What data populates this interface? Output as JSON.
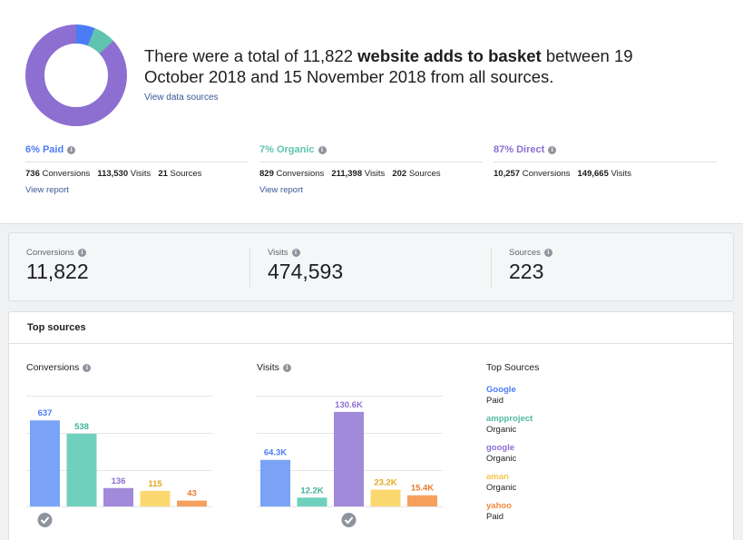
{
  "summary": {
    "headline_pre": "There were a total of 11,822 ",
    "headline_bold": "website adds to basket",
    "headline_post": " between 19 October 2018 and 15 November 2018 from all sources.",
    "view_sources": "View data sources",
    "donut": [
      {
        "label": "Paid",
        "percent": 6,
        "color": "#4a7cf6"
      },
      {
        "label": "Organic",
        "percent": 7,
        "color": "#5ec4b0"
      },
      {
        "label": "Direct",
        "percent": 87,
        "color": "#8c6fd1"
      }
    ]
  },
  "segments": [
    {
      "title": "6% Paid",
      "color": "#4a7cf6",
      "conv": "736",
      "conv_label": "Conversions",
      "visits": "113,530",
      "visits_label": "Visits",
      "sources": "21",
      "sources_label": "Sources",
      "link": "View report"
    },
    {
      "title": "7% Organic",
      "color": "#5ec4b0",
      "conv": "829",
      "conv_label": "Conversions",
      "visits": "211,398",
      "visits_label": "Visits",
      "sources": "202",
      "sources_label": "Sources",
      "link": "View report"
    },
    {
      "title": "87% Direct",
      "color": "#8c6fd1",
      "conv": "10,257",
      "conv_label": "Conversions",
      "visits": "149,665",
      "visits_label": "Visits"
    }
  ],
  "metrics": [
    {
      "label": "Conversions",
      "value": "11,822"
    },
    {
      "label": "Visits",
      "value": "474,593"
    },
    {
      "label": "Sources",
      "value": "223"
    }
  ],
  "card": {
    "title": "Top sources",
    "conversions_label": "Conversions",
    "visits_label": "Visits",
    "top_sources_label": "Top Sources"
  },
  "top_sources": [
    {
      "name": "Google",
      "type": "Paid",
      "color": "#4a7cf6"
    },
    {
      "name": "ampproject",
      "type": "Organic",
      "color": "#4fb89f"
    },
    {
      "name": "google",
      "type": "Organic",
      "color": "#8c6fd1"
    },
    {
      "name": "aman",
      "type": "Organic",
      "color": "#f2c54a"
    },
    {
      "name": "yahoo",
      "type": "Paid",
      "color": "#f08a3e"
    }
  ],
  "chart_data": [
    {
      "type": "bar",
      "title": "Conversions",
      "categories": [
        "Google",
        "ampproject",
        "google",
        "aman",
        "yahoo"
      ],
      "values": [
        637,
        538,
        136,
        115,
        43
      ],
      "labels": [
        "637",
        "538",
        "136",
        "115",
        "43"
      ],
      "colors": [
        "#7aa3f7",
        "#6fd1bd",
        "#a08ad9",
        "#fbd86f",
        "#f5a05c"
      ],
      "label_colors": [
        "#4a7cf6",
        "#3fb29a",
        "#8c6fd1",
        "#e2a91c",
        "#e87c2c"
      ],
      "ylim": [
        0,
        820
      ]
    },
    {
      "type": "bar",
      "title": "Visits",
      "categories": [
        "Google",
        "ampproject",
        "google",
        "aman",
        "yahoo"
      ],
      "values": [
        64300,
        12200,
        130600,
        23200,
        15400
      ],
      "labels": [
        "64.3K",
        "12.2K",
        "130.6K",
        "23.2K",
        "15.4K"
      ],
      "colors": [
        "#7aa3f7",
        "#6fd1bd",
        "#a08ad9",
        "#fbd86f",
        "#f5a05c"
      ],
      "label_colors": [
        "#4a7cf6",
        "#3fb29a",
        "#8c6fd1",
        "#e2a91c",
        "#e87c2c"
      ],
      "ylim": [
        0,
        153000
      ]
    }
  ]
}
